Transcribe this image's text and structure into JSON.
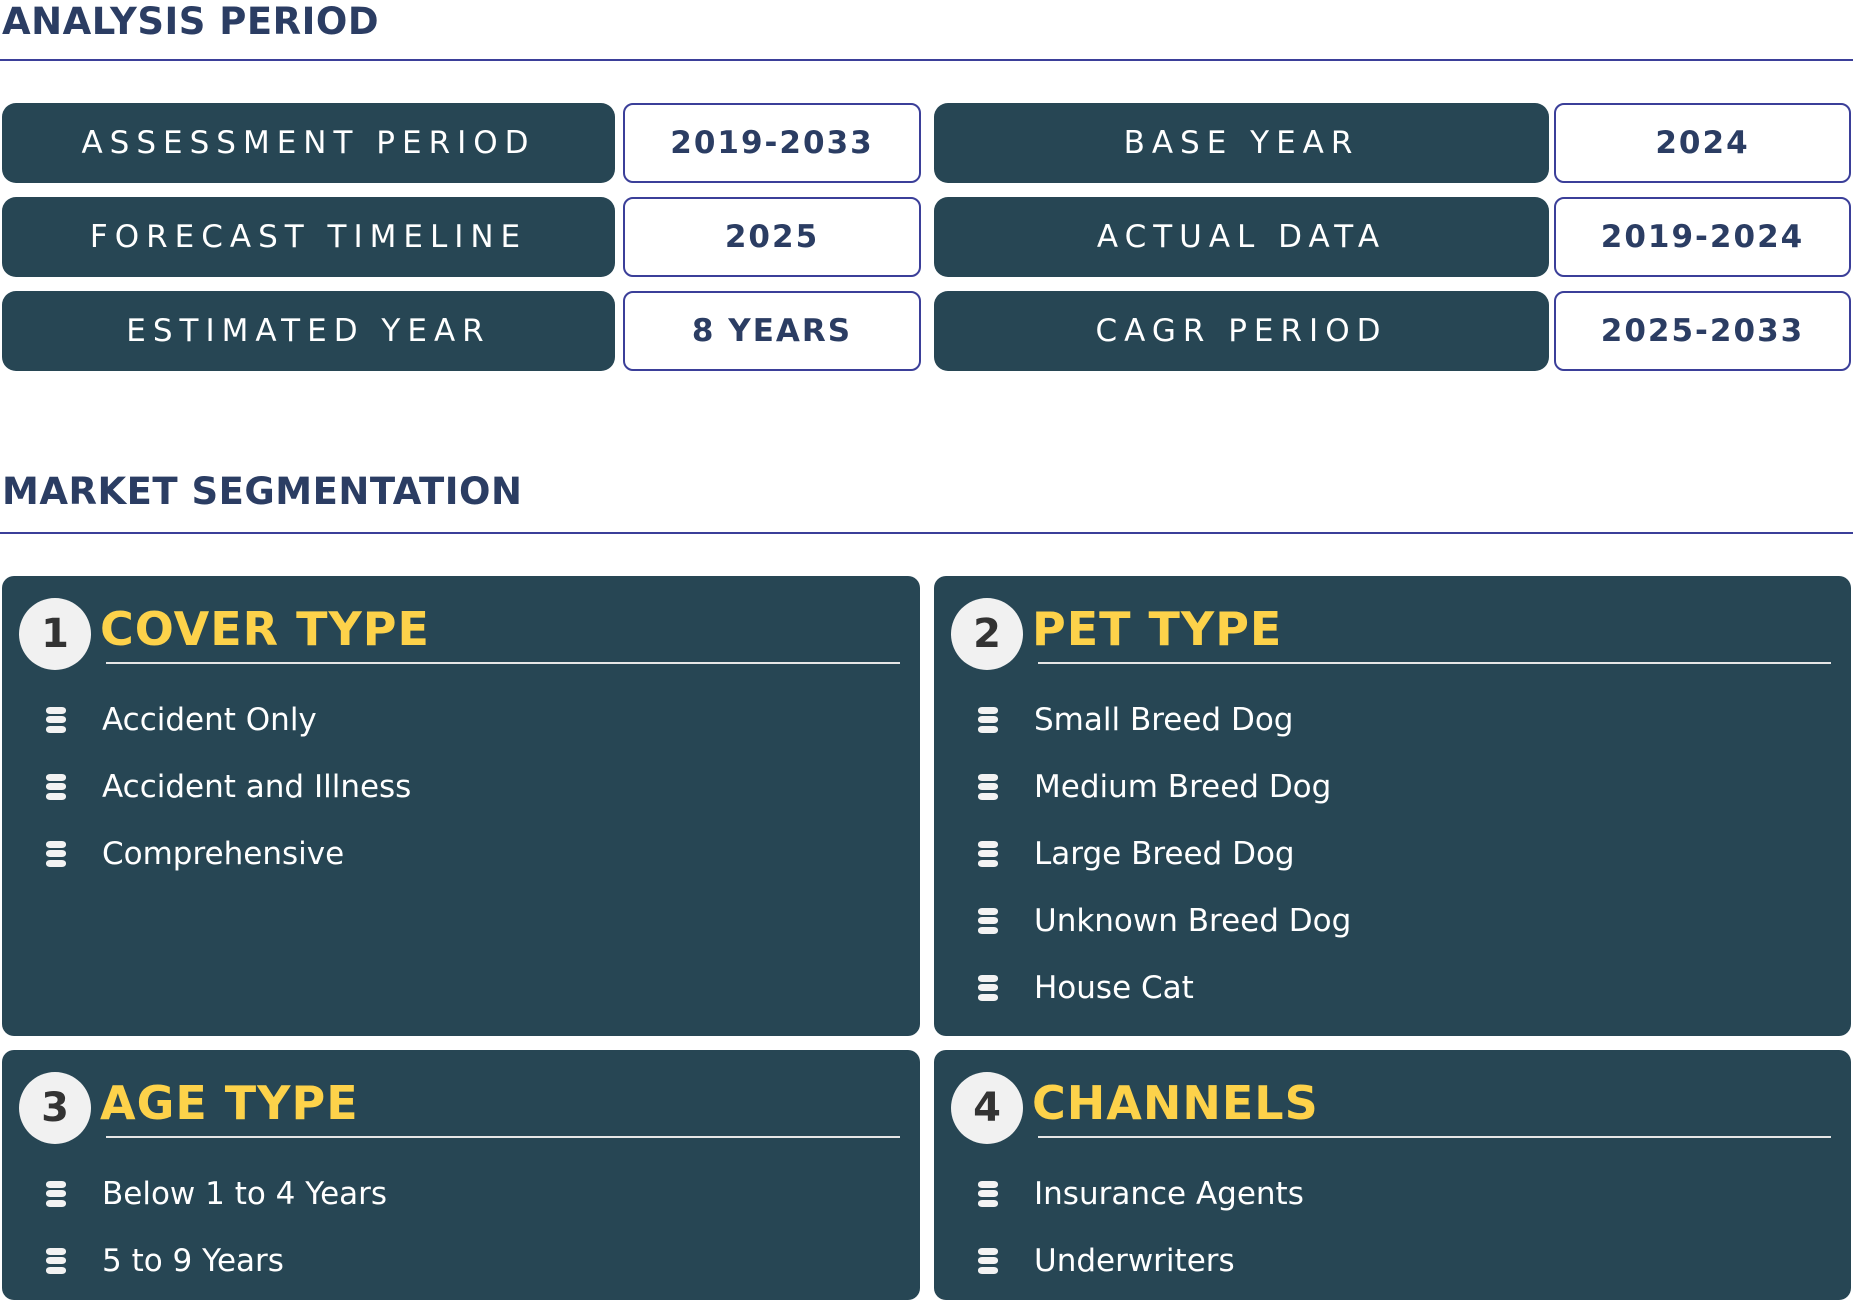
{
  "analysis": {
    "title": "ANALYSIS PERIOD",
    "rows": [
      {
        "label": "ASSESSMENT PERIOD",
        "value": "2019-2033",
        "label2": "BASE YEAR",
        "value2": "2024"
      },
      {
        "label": "FORECAST TIMELINE",
        "value": "2025",
        "label2": "ACTUAL DATA",
        "value2": "2019-2024"
      },
      {
        "label": "ESTIMATED YEAR",
        "value": "8 YEARS",
        "label2": "CAGR PERIOD",
        "value2": "2025-2033"
      }
    ]
  },
  "segmentation": {
    "title": "MARKET SEGMENTATION",
    "panels": [
      {
        "number": "1",
        "title": "COVER TYPE",
        "items": [
          "Accident Only",
          "Accident and Illness",
          "Comprehensive"
        ]
      },
      {
        "number": "2",
        "title": "PET TYPE",
        "items": [
          "Small Breed Dog",
          "Medium Breed Dog",
          "Large Breed Dog",
          "Unknown Breed Dog",
          "House Cat"
        ]
      },
      {
        "number": "3",
        "title": "AGE TYPE",
        "items": [
          "Below 1 to 4 Years",
          "5 to 9 Years"
        ]
      },
      {
        "number": "4",
        "title": "CHANNELS",
        "items": [
          "Insurance Agents",
          "Underwriters"
        ]
      }
    ],
    "item_icon": "database-icon"
  },
  "colors": {
    "panel": "#274654",
    "accent": "#fdd24a",
    "heading": "#2b3d63",
    "border": "#3b3f99"
  }
}
